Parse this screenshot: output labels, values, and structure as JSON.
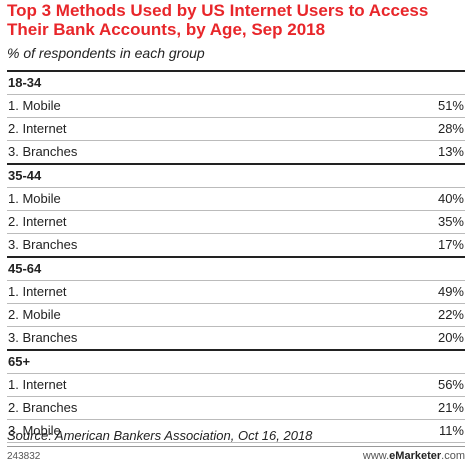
{
  "chart_data": {
    "type": "table",
    "title": "Top 3 Methods Used by US Internet Users to Access Their Bank Accounts, by Age, Sep 2018",
    "subtitle": "% of respondents in each group",
    "groups": [
      {
        "name": "18-34",
        "rows": [
          {
            "label": "1. Mobile",
            "value": 51,
            "display": "51%"
          },
          {
            "label": "2. Internet",
            "value": 28,
            "display": "28%"
          },
          {
            "label": "3. Branches",
            "value": 13,
            "display": "13%"
          }
        ]
      },
      {
        "name": "35-44",
        "rows": [
          {
            "label": "1. Mobile",
            "value": 40,
            "display": "40%"
          },
          {
            "label": "2. Internet",
            "value": 35,
            "display": "35%"
          },
          {
            "label": "3. Branches",
            "value": 17,
            "display": "17%"
          }
        ]
      },
      {
        "name": "45-64",
        "rows": [
          {
            "label": "1. Internet",
            "value": 49,
            "display": "49%"
          },
          {
            "label": "2. Mobile",
            "value": 22,
            "display": "22%"
          },
          {
            "label": "3. Branches",
            "value": 20,
            "display": "20%"
          }
        ]
      },
      {
        "name": "65+",
        "rows": [
          {
            "label": "1. Internet",
            "value": 56,
            "display": "56%"
          },
          {
            "label": "2. Branches",
            "value": 21,
            "display": "21%"
          },
          {
            "label": "3. Mobile",
            "value": 11,
            "display": "11%"
          }
        ]
      }
    ],
    "source": "Source: American Bankers Association, Oct 16, 2018"
  },
  "footer": {
    "chart_id": "243832",
    "brand_prefix": "www.",
    "brand_name": "eMarketer",
    "brand_suffix": ".com"
  },
  "colors": {
    "title": "#e8262a",
    "text": "#222222",
    "rule": "#bbbbbb"
  }
}
